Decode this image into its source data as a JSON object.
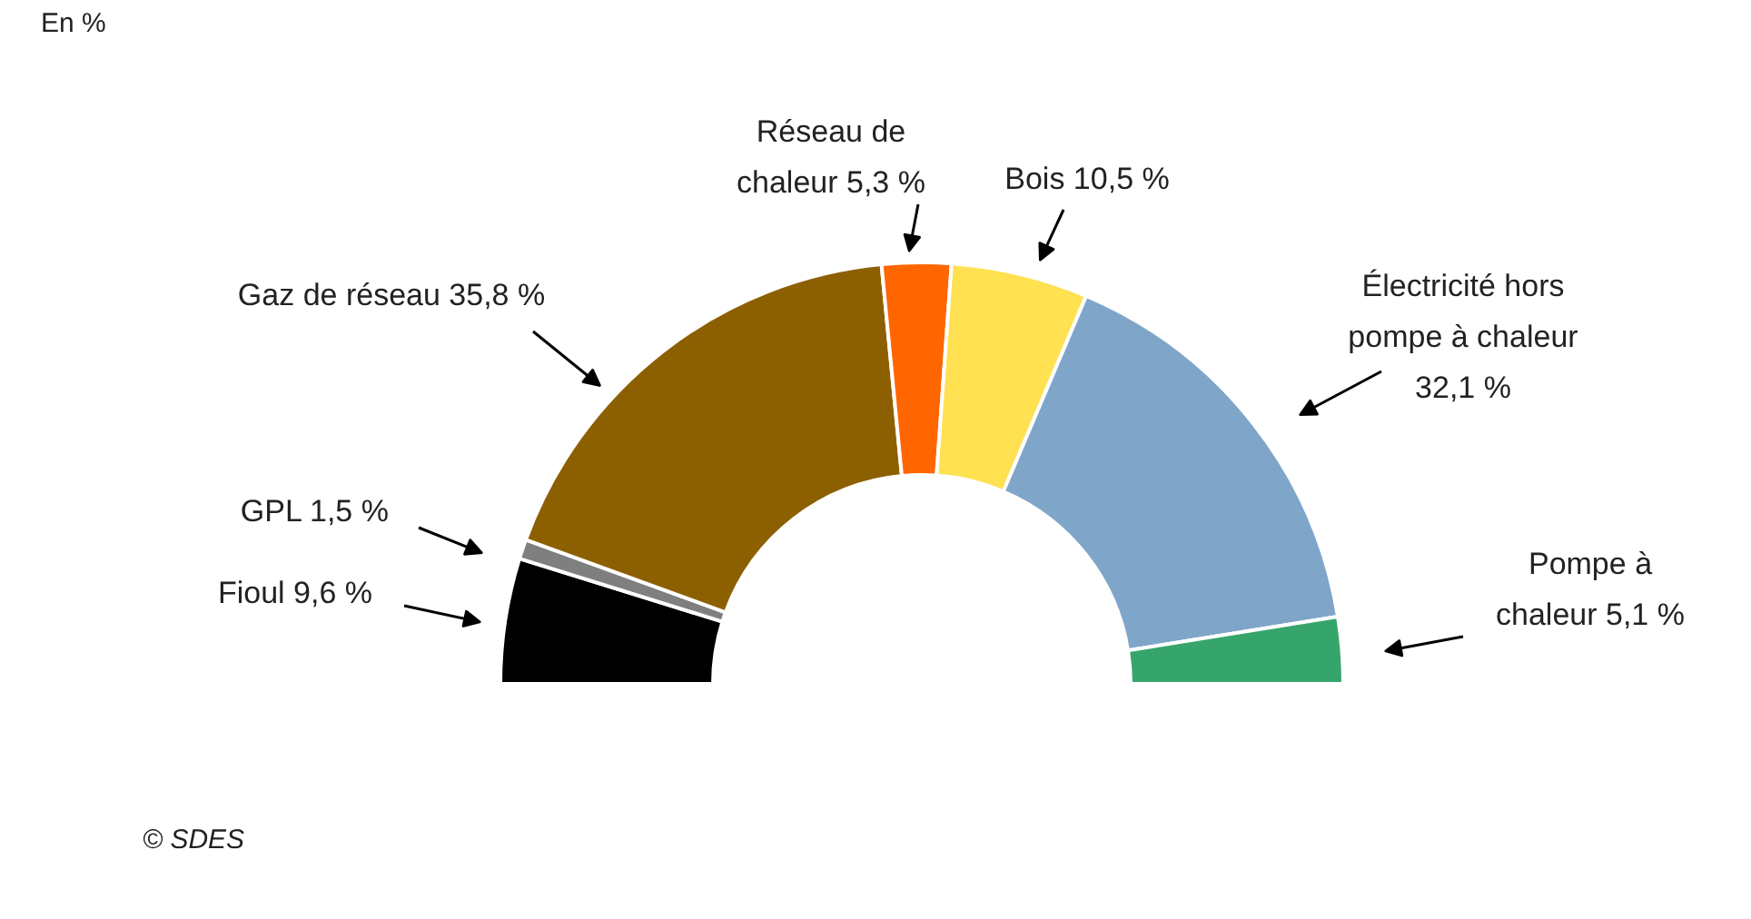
{
  "chart_data": {
    "type": "donut",
    "subtitle": "En %",
    "categories": [
      "Fioul",
      "GPL",
      "Gaz de réseau",
      "Réseau de chaleur",
      "Bois",
      "Électricité hors pompe à chaleur",
      "Pompe à chaleur"
    ],
    "values": [
      9.6,
      1.5,
      35.8,
      5.3,
      10.5,
      32.1,
      5.1
    ],
    "value_labels": [
      "9,6 %",
      "1,5 %",
      "35,8 %",
      "5,3 %",
      "10,5 %",
      "32,1 %",
      "5,1 %"
    ],
    "colors": [
      "#000000",
      "#7f7f7f",
      "#8c6000",
      "#ff6600",
      "#ffe152",
      "#7fa6c9",
      "#36a56b"
    ],
    "annotations": [
      "© SDES"
    ]
  }
}
